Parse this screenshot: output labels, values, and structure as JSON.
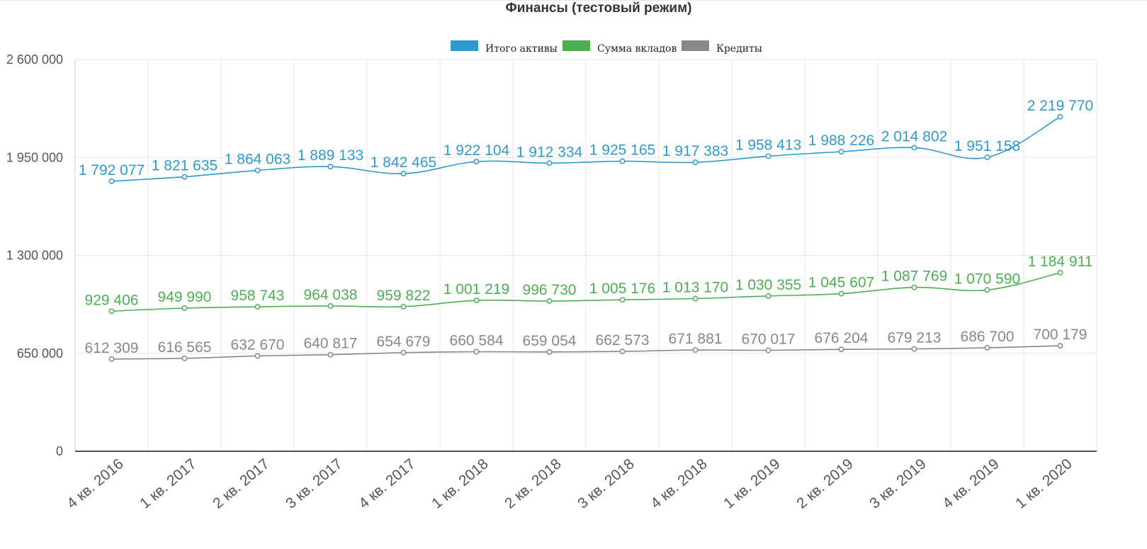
{
  "chart_data": {
    "type": "line",
    "title": "Финансы (тестовый режим)",
    "xlabel": "",
    "ylabel": "",
    "ylim": [
      0,
      2600000
    ],
    "yticks": [
      0,
      650000,
      1300000,
      1950000,
      2600000
    ],
    "ytick_labels": [
      "0",
      "650 000",
      "1 300 000",
      "1 950 000",
      "2 600 000"
    ],
    "grid": true,
    "legend_position": "top-center",
    "categories": [
      "4 кв. 2016",
      "1 кв. 2017",
      "2 кв. 2017",
      "3 кв. 2017",
      "4 кв. 2017",
      "1 кв. 2018",
      "2 кв. 2018",
      "3 кв. 2018",
      "4 кв. 2018",
      "1 кв. 2019",
      "2 кв. 2019",
      "3 кв. 2019",
      "4 кв. 2019",
      "1 кв. 2020"
    ],
    "series": [
      {
        "name": "Итого активы",
        "color": "#2f9ad0",
        "values": [
          1792077,
          1821635,
          1864063,
          1889133,
          1842465,
          1922104,
          1912334,
          1925165,
          1917383,
          1958413,
          1988226,
          2014802,
          1951158,
          2219770
        ],
        "labels": [
          "1 792 077",
          "1 821 635",
          "1 864 063",
          "1 889 133",
          "1 842 465",
          "1 922 104",
          "1 912 334",
          "1 925 165",
          "1 917 383",
          "1 958 413",
          "1 988 226",
          "2 014 802",
          "1 951 158",
          "2 219 770"
        ]
      },
      {
        "name": "Сумма вкладов",
        "color": "#4caf50",
        "values": [
          929406,
          949990,
          958743,
          964038,
          959822,
          1001219,
          996730,
          1005176,
          1013170,
          1030355,
          1045607,
          1087769,
          1070590,
          1184911
        ],
        "labels": [
          "929 406",
          "949 990",
          "958 743",
          "964 038",
          "959 822",
          "1 001 219",
          "996 730",
          "1 005 176",
          "1 013 170",
          "1 030 355",
          "1 045 607",
          "1 087 769",
          "1 070 590",
          "1 184 911"
        ]
      },
      {
        "name": "Кредиты",
        "color": "#888888",
        "values": [
          612309,
          616565,
          632670,
          640817,
          654679,
          660584,
          659054,
          662573,
          671881,
          670017,
          676204,
          679213,
          686700,
          700179
        ],
        "labels": [
          "612 309",
          "616 565",
          "632 670",
          "640 817",
          "654 679",
          "660 584",
          "659 054",
          "662 573",
          "671 881",
          "670 017",
          "676 204",
          "679 213",
          "686 700",
          "700 179"
        ]
      }
    ]
  }
}
